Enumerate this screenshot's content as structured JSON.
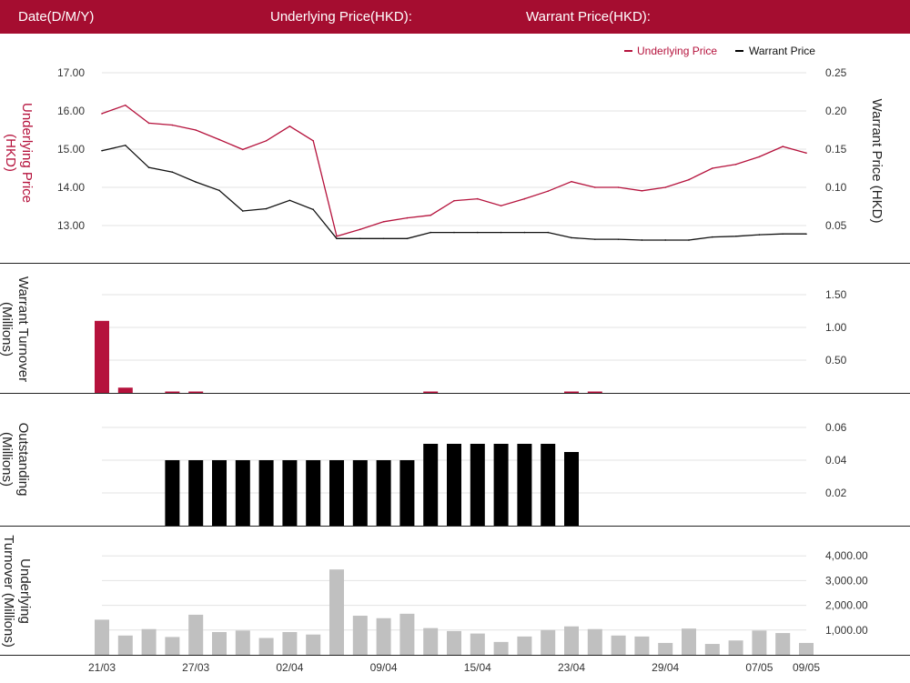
{
  "header": {
    "date_label": "Date(D/M/Y)",
    "underlying_label": "Underlying Price(HKD):",
    "warrant_label": "Warrant Price(HKD):"
  },
  "colors": {
    "brand": "#a50d30",
    "underlying_line": "#b5123c",
    "warrant_line": "#111111",
    "turnover_bar": "#b5123c",
    "outstanding_bar": "#000000",
    "underlying_turnover_bar": "#c0c0c0",
    "grid": "#e3e3e3"
  },
  "chart_data": [
    {
      "type": "line",
      "legend": {
        "placement": "top-right",
        "entries": [
          "Underlying Price",
          "Warrant Price"
        ]
      },
      "y_left_label": [
        "Underlying Price",
        "(HKD)"
      ],
      "y_right_label": "Warrant  Price (HKD)",
      "y_left_ticks": [
        "13.00",
        "14.00",
        "15.00",
        "16.00",
        "17.00"
      ],
      "y_right_ticks": [
        "0.05",
        "0.10",
        "0.15",
        "0.20",
        "0.25"
      ],
      "y_left_range": [
        12.0,
        17.0
      ],
      "y_right_range": [
        0.0,
        0.25
      ],
      "series": [
        {
          "name": "Underlying Price",
          "axis": "left",
          "values": [
            15.93,
            16.15,
            15.68,
            15.63,
            15.5,
            15.25,
            14.99,
            15.22,
            15.6,
            15.22,
            12.72,
            12.9,
            13.1,
            13.2,
            13.27,
            13.65,
            13.7,
            13.52,
            13.7,
            13.9,
            14.15,
            14.0,
            14.0,
            13.91,
            14.0,
            14.2,
            14.5,
            14.6,
            14.8,
            15.07,
            14.9
          ]
        },
        {
          "name": "Warrant Price",
          "axis": "right",
          "values": [
            0.148,
            0.155,
            0.126,
            0.12,
            0.107,
            0.096,
            0.069,
            0.072,
            0.083,
            0.071,
            0.033,
            0.033,
            0.033,
            0.033,
            0.041,
            0.041,
            0.041,
            0.041,
            0.041,
            0.041,
            0.034,
            0.032,
            0.032,
            0.031,
            0.031,
            0.031,
            0.035,
            0.036,
            0.038,
            0.039,
            0.039
          ]
        }
      ]
    },
    {
      "type": "bar",
      "y_label": [
        "Warrant  Turnover",
        "(Millions)"
      ],
      "y_ticks": [
        "0.50",
        "1.00",
        "1.50"
      ],
      "y_range": [
        0,
        1.5
      ],
      "values": [
        1.1,
        0.08,
        0,
        0.012,
        0.012,
        0,
        0,
        0,
        0,
        0,
        0,
        0,
        0,
        0,
        0.01,
        0,
        0,
        0,
        0,
        0,
        0.01,
        0.01,
        0,
        0,
        0,
        0,
        0,
        0,
        0,
        0,
        0
      ]
    },
    {
      "type": "bar",
      "y_label": [
        "Outstanding",
        "(Millions)"
      ],
      "y_ticks": [
        "0.02",
        "0.04",
        "0.06"
      ],
      "y_range": [
        0,
        0.06
      ],
      "values": [
        0,
        0,
        0,
        0.04,
        0.04,
        0.04,
        0.04,
        0.04,
        0.04,
        0.04,
        0.04,
        0.04,
        0.04,
        0.04,
        0.05,
        0.05,
        0.05,
        0.05,
        0.05,
        0.05,
        0.045,
        0,
        0,
        0,
        0,
        0,
        0,
        0,
        0,
        0,
        0
      ]
    },
    {
      "type": "bar",
      "y_label": [
        "Underlying",
        "Turnover (Millions)"
      ],
      "y_ticks": [
        "1,000.00",
        "2,000.00",
        "3,000.00",
        "4,000.00"
      ],
      "y_range": [
        0,
        4000
      ],
      "values": [
        1420,
        780,
        1040,
        720,
        1620,
        920,
        980,
        680,
        920,
        820,
        3450,
        1580,
        1480,
        1660,
        1080,
        960,
        860,
        520,
        740,
        1000,
        1150,
        1040,
        780,
        740,
        480,
        1060,
        440,
        580,
        980,
        880,
        480
      ]
    }
  ],
  "x_ticks": [
    {
      "label": "21/03",
      "index": 0
    },
    {
      "label": "27/03",
      "index": 4
    },
    {
      "label": "02/04",
      "index": 8
    },
    {
      "label": "09/04",
      "index": 12
    },
    {
      "label": "15/04",
      "index": 16
    },
    {
      "label": "23/04",
      "index": 20
    },
    {
      "label": "29/04",
      "index": 24
    },
    {
      "label": "07/05",
      "index": 28
    },
    {
      "label": "09/05",
      "index": 30
    }
  ]
}
